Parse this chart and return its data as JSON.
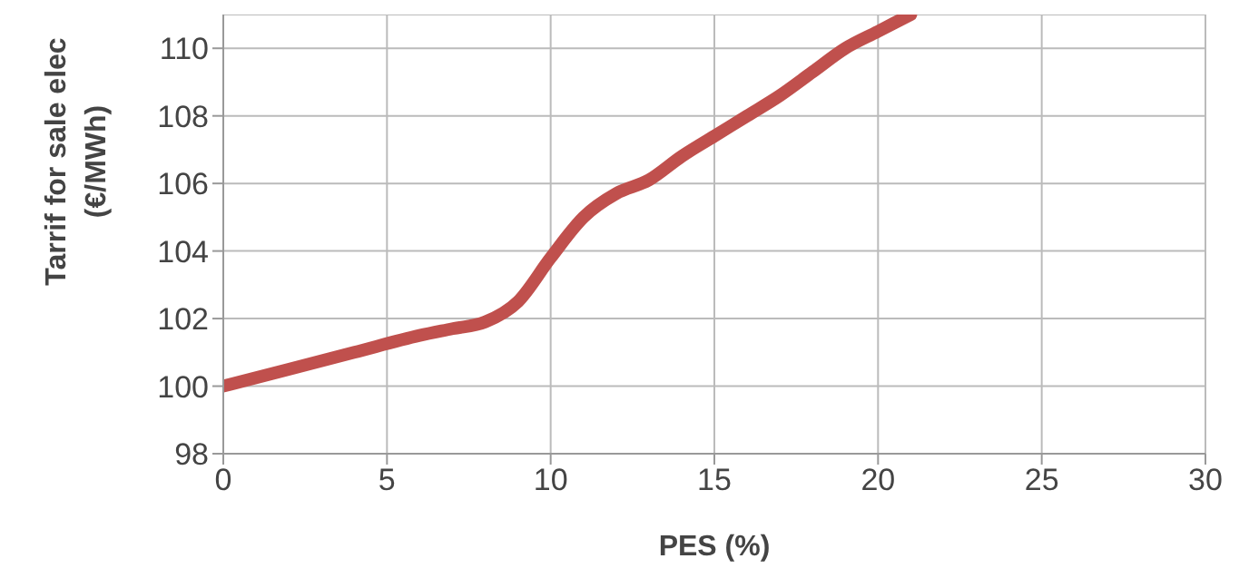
{
  "chart_data": {
    "type": "line",
    "xlabel": "PES (%)",
    "ylabel": "Tarrif for sale elec\n(€/MWh)",
    "x": [
      0,
      2,
      4,
      6,
      7,
      8,
      9,
      10,
      11,
      12,
      13,
      14,
      15,
      16,
      17,
      18,
      19,
      20,
      21
    ],
    "series": [
      {
        "color": "#c0504d",
        "values": [
          100,
          100.5,
          101,
          101.5,
          101.7,
          101.9,
          102.5,
          103.8,
          105.0,
          105.7,
          106.1,
          106.8,
          107.4,
          108.0,
          108.6,
          109.3,
          110.0,
          110.5,
          111
        ]
      }
    ],
    "xlim": [
      0,
      30
    ],
    "xticks": [
      0,
      5,
      10,
      15,
      20,
      25,
      30
    ],
    "ylim": [
      98,
      111
    ],
    "yticks": [
      98,
      100,
      102,
      104,
      106,
      108,
      110
    ],
    "grid": true,
    "marker": "none",
    "line_style": "solid"
  }
}
